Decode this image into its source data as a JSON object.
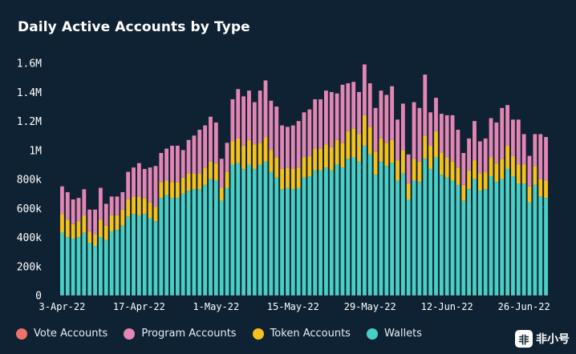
{
  "title": "Daily Active Accounts by Type",
  "watermark": {
    "logo": "非",
    "text": "非小号"
  },
  "legend": [
    {
      "label": "Vote Accounts",
      "color": "#f0706b"
    },
    {
      "label": "Program Accounts",
      "color": "#e486b4"
    },
    {
      "label": "Token Accounts",
      "color": "#f5c11d"
    },
    {
      "label": "Wallets",
      "color": "#48d0c4"
    }
  ],
  "chart_data": {
    "type": "bar",
    "stacked": true,
    "title": "Daily Active Accounts by Type",
    "xlabel": "",
    "ylabel": "",
    "ylim": [
      0,
      1600000
    ],
    "y_ticks": [
      0,
      200000,
      400000,
      600000,
      800000,
      1000000,
      1200000,
      1400000,
      1600000
    ],
    "y_tick_labels": [
      "0",
      "200k",
      "400k",
      "600k",
      "800k",
      "1M",
      "1.2M",
      "1.4M",
      "1.6M"
    ],
    "x_tick_labels": [
      {
        "index": 0,
        "label": "3-Apr-22"
      },
      {
        "index": 14,
        "label": "17-Apr-22"
      },
      {
        "index": 28,
        "label": "1-May-22"
      },
      {
        "index": 42,
        "label": "15-May-22"
      },
      {
        "index": 56,
        "label": "29-May-22"
      },
      {
        "index": 70,
        "label": "12-Jun-22"
      },
      {
        "index": 84,
        "label": "26-Jun-22"
      }
    ],
    "grid": false,
    "legend_position": "bottom",
    "categories": [
      "2022-04-03",
      "2022-04-04",
      "2022-04-05",
      "2022-04-06",
      "2022-04-07",
      "2022-04-08",
      "2022-04-09",
      "2022-04-10",
      "2022-04-11",
      "2022-04-12",
      "2022-04-13",
      "2022-04-14",
      "2022-04-15",
      "2022-04-16",
      "2022-04-17",
      "2022-04-18",
      "2022-04-19",
      "2022-04-20",
      "2022-04-21",
      "2022-04-22",
      "2022-04-23",
      "2022-04-24",
      "2022-04-25",
      "2022-04-26",
      "2022-04-27",
      "2022-04-28",
      "2022-04-29",
      "2022-04-30",
      "2022-05-01",
      "2022-05-02",
      "2022-05-03",
      "2022-05-04",
      "2022-05-05",
      "2022-05-06",
      "2022-05-07",
      "2022-05-08",
      "2022-05-09",
      "2022-05-10",
      "2022-05-11",
      "2022-05-12",
      "2022-05-13",
      "2022-05-14",
      "2022-05-15",
      "2022-05-16",
      "2022-05-17",
      "2022-05-18",
      "2022-05-19",
      "2022-05-20",
      "2022-05-21",
      "2022-05-22",
      "2022-05-23",
      "2022-05-24",
      "2022-05-25",
      "2022-05-26",
      "2022-05-27",
      "2022-05-28",
      "2022-05-29",
      "2022-05-30",
      "2022-05-31",
      "2022-06-01",
      "2022-06-02",
      "2022-06-03",
      "2022-06-04",
      "2022-06-05",
      "2022-06-06",
      "2022-06-07",
      "2022-06-08",
      "2022-06-09",
      "2022-06-10",
      "2022-06-11",
      "2022-06-12",
      "2022-06-13",
      "2022-06-14",
      "2022-06-15",
      "2022-06-16",
      "2022-06-17",
      "2022-06-18",
      "2022-06-19",
      "2022-06-20",
      "2022-06-21",
      "2022-06-22",
      "2022-06-23",
      "2022-06-24",
      "2022-06-25",
      "2022-06-26",
      "2022-06-27",
      "2022-06-28",
      "2022-06-29",
      "2022-06-30"
    ],
    "series": [
      {
        "name": "Vote Accounts",
        "color": "#f0706b",
        "values": [
          2000,
          2000,
          2000,
          2000,
          2000,
          2000,
          2000,
          2000,
          2000,
          2000,
          2000,
          2000,
          2000,
          2000,
          2000,
          2000,
          2000,
          2000,
          2000,
          2000,
          2000,
          2000,
          2000,
          2000,
          2000,
          2000,
          2000,
          2000,
          2000,
          2000,
          2000,
          2000,
          2000,
          2000,
          2000,
          2000,
          2000,
          2000,
          2000,
          2000,
          2000,
          2000,
          2000,
          2000,
          2000,
          2000,
          2000,
          2000,
          2000,
          2000,
          2000,
          2000,
          2000,
          2000,
          2000,
          2000,
          2000,
          2000,
          2000,
          2000,
          2000,
          2000,
          2000,
          2000,
          2000,
          2000,
          2000,
          2000,
          2000,
          2000,
          2000,
          2000,
          2000,
          2000,
          2000,
          2000,
          2000,
          2000,
          2000,
          2000,
          2000,
          2000,
          2000,
          2000,
          2000,
          2000,
          2000,
          2000,
          2000
        ]
      },
      {
        "name": "Wallets",
        "color": "#48d0c4",
        "values": [
          430000,
          400000,
          390000,
          400000,
          430000,
          360000,
          340000,
          400000,
          380000,
          440000,
          450000,
          480000,
          540000,
          560000,
          550000,
          560000,
          530000,
          510000,
          670000,
          690000,
          670000,
          670000,
          700000,
          720000,
          730000,
          730000,
          760000,
          800000,
          790000,
          650000,
          740000,
          900000,
          910000,
          870000,
          900000,
          870000,
          900000,
          920000,
          850000,
          810000,
          730000,
          740000,
          730000,
          740000,
          810000,
          820000,
          860000,
          860000,
          880000,
          860000,
          900000,
          880000,
          940000,
          950000,
          920000,
          1030000,
          970000,
          830000,
          920000,
          890000,
          910000,
          790000,
          840000,
          660000,
          790000,
          780000,
          940000,
          870000,
          950000,
          830000,
          810000,
          790000,
          760000,
          650000,
          730000,
          800000,
          720000,
          730000,
          820000,
          780000,
          800000,
          870000,
          820000,
          770000,
          770000,
          640000,
          760000,
          680000,
          670000
        ]
      },
      {
        "name": "Token Accounts",
        "color": "#f5c11d",
        "values": [
          130000,
          120000,
          100000,
          110000,
          120000,
          80000,
          80000,
          120000,
          100000,
          110000,
          100000,
          110000,
          120000,
          120000,
          130000,
          110000,
          110000,
          100000,
          110000,
          100000,
          110000,
          110000,
          110000,
          120000,
          110000,
          110000,
          120000,
          120000,
          120000,
          90000,
          110000,
          160000,
          170000,
          160000,
          170000,
          170000,
          150000,
          170000,
          150000,
          140000,
          140000,
          140000,
          140000,
          140000,
          140000,
          140000,
          150000,
          150000,
          160000,
          160000,
          170000,
          170000,
          190000,
          200000,
          190000,
          210000,
          190000,
          160000,
          160000,
          160000,
          160000,
          140000,
          160000,
          110000,
          150000,
          140000,
          160000,
          160000,
          180000,
          150000,
          140000,
          130000,
          120000,
          110000,
          130000,
          130000,
          120000,
          120000,
          130000,
          130000,
          140000,
          160000,
          140000,
          130000,
          130000,
          110000,
          130000,
          120000,
          120000
        ]
      },
      {
        "name": "Program Accounts",
        "color": "#e486b4",
        "values": [
          190000,
          190000,
          170000,
          160000,
          180000,
          150000,
          170000,
          220000,
          150000,
          130000,
          130000,
          120000,
          190000,
          200000,
          230000,
          200000,
          240000,
          280000,
          200000,
          220000,
          250000,
          250000,
          190000,
          230000,
          260000,
          300000,
          290000,
          310000,
          280000,
          200000,
          200000,
          290000,
          340000,
          340000,
          340000,
          290000,
          360000,
          390000,
          340000,
          350000,
          300000,
          280000,
          300000,
          320000,
          310000,
          320000,
          340000,
          340000,
          370000,
          380000,
          320000,
          400000,
          330000,
          320000,
          290000,
          350000,
          300000,
          300000,
          330000,
          330000,
          370000,
          280000,
          320000,
          200000,
          390000,
          370000,
          420000,
          230000,
          230000,
          270000,
          290000,
          320000,
          260000,
          220000,
          220000,
          270000,
          220000,
          230000,
          270000,
          280000,
          350000,
          280000,
          250000,
          310000,
          210000,
          210000,
          220000,
          310000,
          300000
        ]
      }
    ]
  }
}
